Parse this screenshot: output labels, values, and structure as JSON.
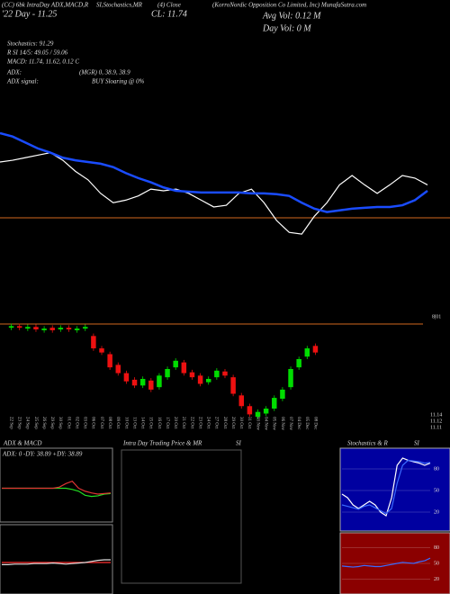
{
  "header": {
    "line1a": "(CC) 6bk IntraDay ADX,MACD,R",
    "line1b": "SI,Stochastics,MR",
    "line1c": "(4) Close",
    "line1d": "(KorroNordic Opposition Co Limited, Inc) MunafaSutra.com",
    "close": "CL: 11.74",
    "avg_vol": "Avg Vol: 0.12  M",
    "day_vol": "Day Vol: 0  M",
    "day_range": "'22 Day - 11.25",
    "stochastics": "Stochastics: 91.29",
    "rsi": "R  SI 14/5: 49.05 / 59.06",
    "macd": "MACD: 11.74, 11.62, 0.12  C",
    "adx": "ADX:",
    "adx_vals": "(MGR) 0, 38.9, 38.9",
    "adx_signal": "ADX  signal:",
    "adx_signal_val": "BUY Sloaring @ 0%"
  },
  "price_labels": [
    "11.14",
    "11.12",
    "11.11"
  ],
  "panels": {
    "adx_title": "ADX  & MACD",
    "adx_values": "ADX: 0  -DY: 38.89  +DY: 38.89",
    "mr_title": "Intra  Day Trading Price  & MR",
    "mr_si": "SI",
    "stoch_title": "Stochastics & R",
    "stoch_si": "SI"
  },
  "chart_data": [
    {
      "type": "line",
      "ylim": [
        11.0,
        12.4
      ],
      "series": [
        {
          "color": "#ffffff",
          "values": [
            11.87,
            11.89,
            11.92,
            11.95,
            11.98,
            11.89,
            11.76,
            11.66,
            11.5,
            11.39,
            11.42,
            11.47,
            11.55,
            11.53,
            11.55,
            11.5,
            11.42,
            11.34,
            11.36,
            11.5,
            11.55,
            11.39,
            11.18,
            11.04,
            11.02,
            11.23,
            11.39,
            11.6,
            11.71,
            11.6,
            11.5,
            11.6,
            11.71,
            11.68,
            11.6
          ]
        },
        {
          "color": "#1a4cff",
          "values": [
            12.21,
            12.17,
            12.1,
            12.03,
            11.98,
            11.92,
            11.89,
            11.87,
            11.85,
            11.81,
            11.74,
            11.68,
            11.63,
            11.57,
            11.53,
            11.52,
            11.51,
            11.51,
            11.51,
            11.51,
            11.5,
            11.5,
            11.49,
            11.47,
            11.39,
            11.32,
            11.28,
            11.3,
            11.32,
            11.33,
            11.34,
            11.34,
            11.36,
            11.42,
            11.53
          ]
        }
      ]
    },
    {
      "type": "candlestick",
      "ylim": [
        11.0,
        12.2
      ],
      "categories": [
        "22 Sep",
        "23 Sep",
        "24 Sep",
        "25 Sep",
        "26 Sep",
        "29 Sep",
        "30 Sep",
        "01 Oct",
        "02 Oct",
        "03 Oct",
        "06 Oct",
        "07 Oct",
        "08 Oct",
        "09 Oct",
        "10 Oct",
        "13 Oct",
        "14 Oct",
        "15 Oct",
        "16 Oct",
        "17 Oct",
        "20 Oct",
        "21 Oct",
        "22 Oct",
        "23 Oct",
        "24 Oct",
        "27 Oct",
        "28 Oct",
        "29 Oct",
        "30 Oct",
        "31 Oct",
        "03 Nov",
        "04 Nov",
        "05 Nov",
        "06 Nov",
        "07 Nov",
        "04 Dec",
        "05 Dec",
        "08 Dec"
      ],
      "open": [
        12.1,
        12.12,
        12.09,
        12.11,
        12.07,
        12.1,
        12.08,
        12.1,
        12.07,
        12.09,
        12.0,
        11.85,
        11.78,
        11.65,
        11.55,
        11.47,
        11.4,
        11.46,
        11.38,
        11.5,
        11.62,
        11.68,
        11.56,
        11.52,
        11.44,
        11.5,
        11.57,
        11.5,
        11.28,
        11.15,
        11.02,
        11.06,
        11.12,
        11.24,
        11.38,
        11.62,
        11.75,
        11.88
      ],
      "high": [
        12.15,
        12.15,
        12.14,
        12.14,
        12.12,
        12.13,
        12.13,
        12.13,
        12.12,
        12.14,
        12.03,
        11.88,
        11.81,
        11.68,
        11.58,
        11.5,
        11.51,
        11.49,
        11.55,
        11.63,
        11.73,
        11.71,
        11.59,
        11.55,
        11.51,
        11.61,
        11.6,
        11.53,
        11.31,
        11.18,
        11.11,
        11.15,
        11.28,
        11.38,
        11.63,
        11.75,
        11.88,
        11.91
      ],
      "low": [
        12.07,
        12.07,
        12.06,
        12.05,
        12.04,
        12.04,
        12.05,
        12.05,
        12.04,
        12.06,
        11.82,
        11.77,
        11.59,
        11.52,
        11.42,
        11.37,
        11.37,
        11.32,
        11.35,
        11.47,
        11.59,
        11.52,
        11.47,
        11.39,
        11.41,
        11.47,
        11.49,
        11.27,
        11.12,
        11.02,
        10.99,
        11.03,
        11.09,
        11.21,
        11.35,
        11.59,
        11.72,
        11.77
      ],
      "close": [
        12.12,
        12.1,
        12.11,
        12.08,
        12.09,
        12.07,
        12.1,
        12.08,
        12.09,
        12.11,
        11.85,
        11.8,
        11.62,
        11.55,
        11.45,
        11.4,
        11.48,
        11.35,
        11.52,
        11.6,
        11.7,
        11.55,
        11.5,
        11.42,
        11.48,
        11.58,
        11.52,
        11.3,
        11.15,
        11.05,
        11.08,
        11.12,
        11.25,
        11.35,
        11.6,
        11.72,
        11.85,
        11.8
      ]
    },
    {
      "type": "line",
      "ylim": [
        0,
        100
      ],
      "series": [
        {
          "color": "#22dd22",
          "values": [
            50,
            50,
            50,
            50,
            50,
            50,
            50,
            50,
            50,
            50,
            50,
            48,
            45,
            38,
            36,
            37,
            40,
            41
          ]
        },
        {
          "color": "#dd3333",
          "values": [
            50,
            50,
            50,
            50,
            50,
            50,
            50,
            50,
            50,
            52,
            58,
            62,
            50,
            45,
            42,
            40,
            41,
            42
          ]
        }
      ]
    },
    {
      "type": "line",
      "ylim": [
        0,
        100
      ],
      "series": [
        {
          "color": "#ff3030",
          "values": [
            50,
            50,
            50,
            50,
            50,
            50,
            50,
            50,
            50,
            50,
            50,
            50,
            50,
            50,
            50,
            50,
            50,
            50
          ]
        },
        {
          "color": "#dddddd",
          "values": [
            46,
            46,
            47,
            47,
            47,
            48,
            48,
            48,
            49,
            48,
            47,
            48,
            49,
            50,
            52,
            54,
            55,
            55
          ]
        }
      ]
    },
    {
      "type": "line",
      "ylim": [
        0,
        100
      ],
      "yticks": [
        20,
        50,
        80
      ],
      "series": [
        {
          "color": "#ffffff",
          "values": [
            45,
            40,
            30,
            25,
            30,
            35,
            30,
            20,
            15,
            40,
            85,
            95,
            92,
            90,
            88,
            85,
            88
          ]
        },
        {
          "color": "#3a6bff",
          "values": [
            30,
            28,
            26,
            24,
            28,
            30,
            26,
            22,
            18,
            25,
            60,
            85,
            92,
            91,
            90,
            88,
            89
          ]
        }
      ]
    },
    {
      "type": "line",
      "ylim": [
        0,
        100
      ],
      "yticks": [
        20,
        50,
        80
      ],
      "series": [
        {
          "color": "#3a6bff",
          "values": [
            45,
            44,
            43,
            44,
            46,
            45,
            44,
            44,
            46,
            48,
            50,
            52,
            51,
            50,
            53,
            55,
            60
          ]
        }
      ]
    }
  ]
}
